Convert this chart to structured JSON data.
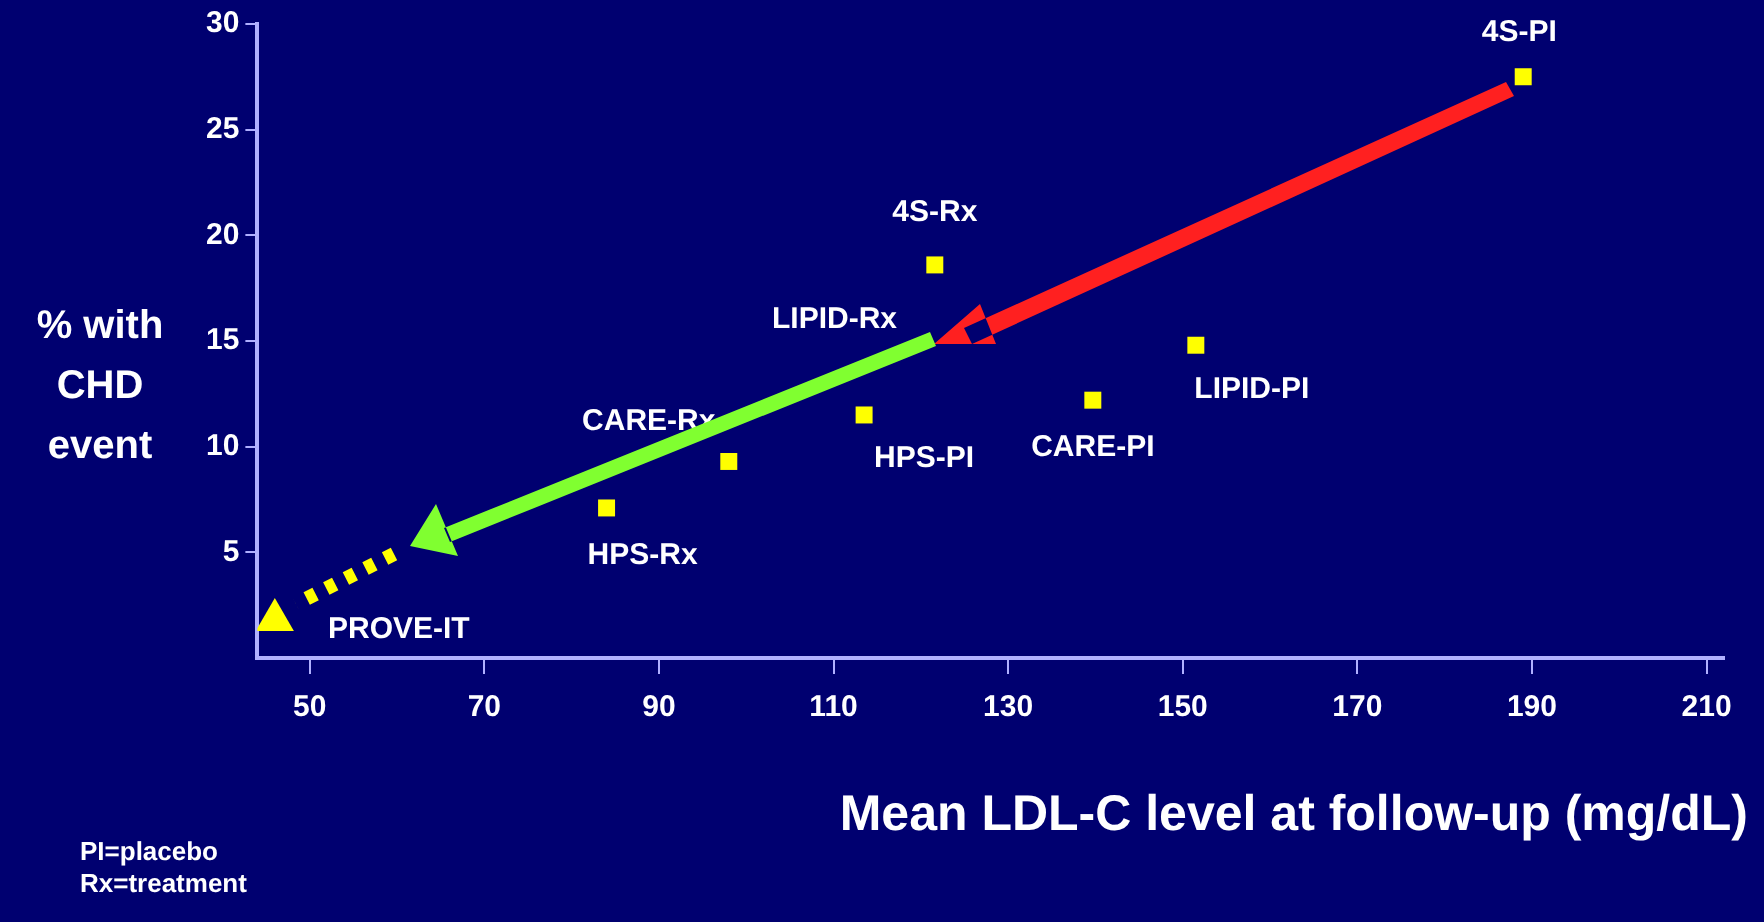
{
  "chart_data": {
    "type": "scatter",
    "xlabel": "Mean LDL-C level at follow-up (mg/dL)",
    "ylabel": "% with CHD event",
    "xlim": [
      44,
      212
    ],
    "xticks": [
      50,
      70,
      90,
      110,
      130,
      150,
      170,
      190,
      210
    ],
    "ylim": [
      0,
      30
    ],
    "yticks": [
      5,
      10,
      15,
      20,
      25,
      30
    ],
    "series": [
      {
        "color": "#ffff00",
        "x": [
          84,
          98,
          113.5,
          121.6,
          139.7,
          151.5,
          189
        ],
        "values": [
          7.1,
          9.3,
          11.5,
          18.6,
          12.2,
          14.8,
          27.5
        ],
        "marker": "square"
      },
      {
        "color": "#ffff00",
        "x": [
          46
        ],
        "values": [
          1.8
        ],
        "marker": "triangle"
      }
    ],
    "annotations": [
      {
        "text": "PROVE-IT",
        "x": 46,
        "y": 1.8
      },
      {
        "text": "HPS-Rx",
        "x": 84,
        "y": 7.1
      },
      {
        "text": "CARE-Rx",
        "x": 98,
        "y": 9.3
      },
      "LIPID-Rx",
      {
        "text": "HPS-PI",
        "x": 113.5,
        "y": 11.5
      },
      {
        "text": "4S-Rx",
        "x": 121.6,
        "y": 18.6
      },
      {
        "text": "CARE-PI",
        "x": 139.7,
        "y": 12.2
      },
      {
        "text": "LIPID-PI",
        "x": 151.5,
        "y": 14.8
      },
      {
        "text": "4S-PI",
        "x": 189,
        "y": 27.5
      },
      "PI=placebo",
      "Rx=treatment"
    ]
  }
}
